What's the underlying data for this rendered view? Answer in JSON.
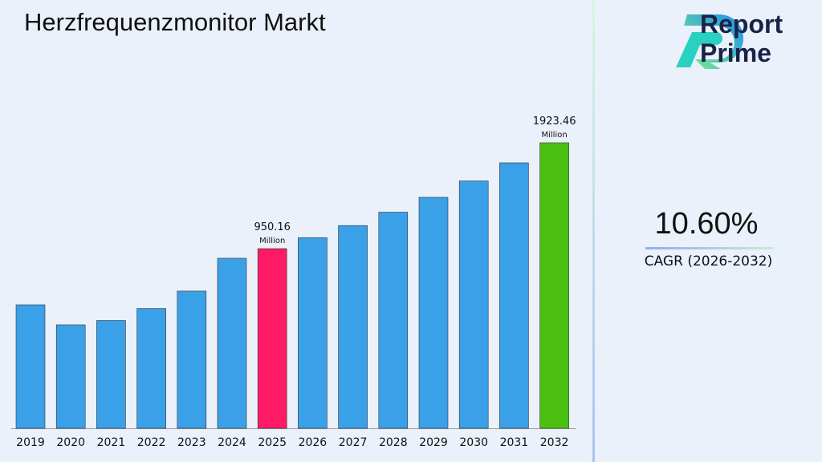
{
  "title": "Herzfrequenzmonitor Markt",
  "brand": {
    "line1": "Report",
    "line2": "Prime"
  },
  "cagr": {
    "value": "10.60%",
    "label": "CAGR (2026-2032)"
  },
  "colors": {
    "bar": "#3aa0e8",
    "highlight_2025": "#ff1a66",
    "highlight_2032": "#4cc010"
  },
  "chart_data": {
    "type": "bar",
    "title": "Herzfrequenzmonitor Markt",
    "categories": [
      "2019",
      "2020",
      "2021",
      "2022",
      "2023",
      "2024",
      "2025",
      "2026",
      "2027",
      "2028",
      "2029",
      "2030",
      "2031",
      "2032"
    ],
    "values": [
      434,
      250,
      290,
      400,
      560,
      862,
      950.16,
      1050.9,
      1162.3,
      1285.5,
      1421.8,
      1572.5,
      1739.2,
      1923.46
    ],
    "data_labels": [
      {
        "category": "2025",
        "value": "950.16",
        "unit": "Million"
      },
      {
        "category": "2032",
        "value": "1923.46",
        "unit": "Million"
      }
    ],
    "xlabel": "",
    "ylabel": "",
    "grid": false
  }
}
